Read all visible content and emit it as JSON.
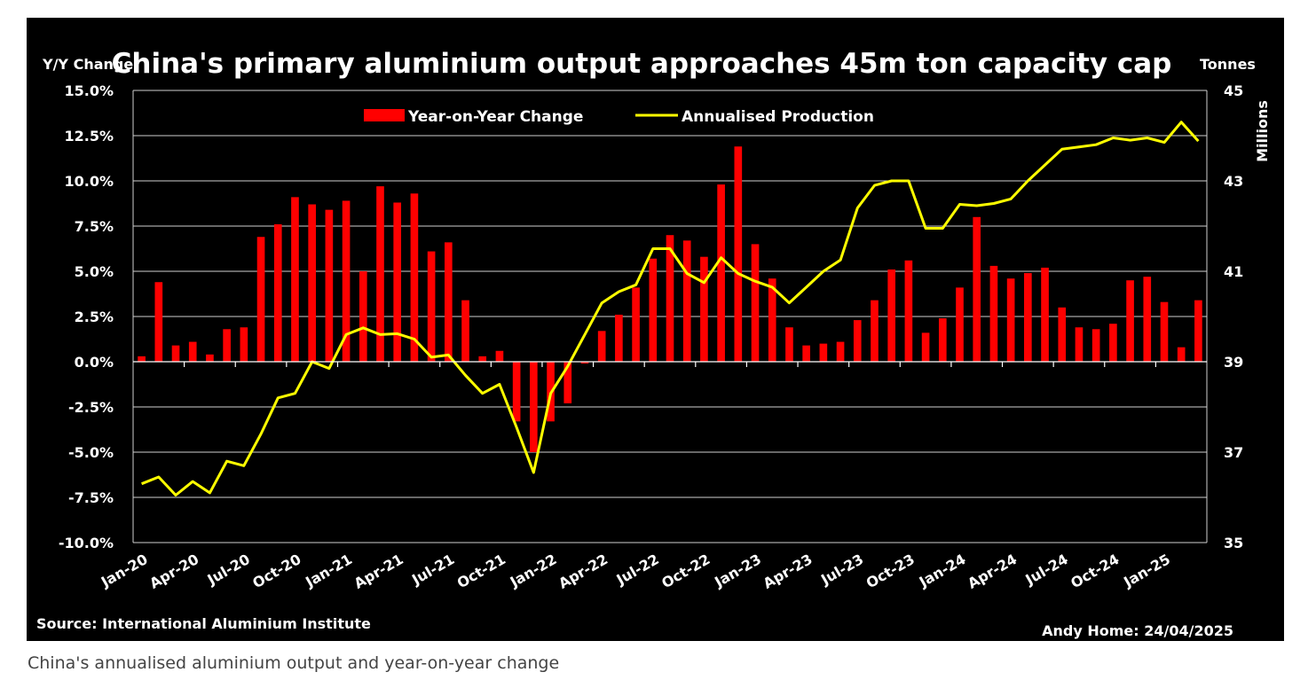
{
  "caption": "China's annualised aluminium output and year-on-year change",
  "chart_data": {
    "type": "bar",
    "title": "China's primary aluminium output approaches 45m ton capacity cap",
    "y_left_label": "Y/Y Change",
    "y_right_label": "Tonnes",
    "y_right_unit": "Millions",
    "source": "Source: International Aluminium Institute",
    "credit": "Andy Home: 24/04/2025",
    "y_left_ticks": [
      "15.0%",
      "12.5%",
      "10.0%",
      "7.5%",
      "5.0%",
      "2.5%",
      "0.0%",
      "-2.5%",
      "-5.0%",
      "-7.5%",
      "-10.0%"
    ],
    "y_right_ticks": [
      "45",
      "43",
      "41",
      "39",
      "37",
      "35"
    ],
    "y_left_range": [
      -10,
      15
    ],
    "y_right_range": [
      35,
      45
    ],
    "x_tick_labels": [
      "Jan-20",
      "Apr-20",
      "Jul-20",
      "Oct-20",
      "Jan-21",
      "Apr-21",
      "Jul-21",
      "Oct-21",
      "Jan-22",
      "Apr-22",
      "Jul-22",
      "Oct-22",
      "Jan-23",
      "Apr-23",
      "Jul-23",
      "Oct-23",
      "Jan-24",
      "Apr-24",
      "Jul-24",
      "Oct-24",
      "Jan-25"
    ],
    "legend_position": "top-center",
    "grid": true,
    "series": [
      {
        "name": "Year-on-Year Change",
        "type": "bar",
        "axis": "left",
        "color": "#ff0000",
        "values": [
          0.3,
          4.4,
          0.9,
          1.1,
          0.4,
          1.8,
          1.9,
          6.9,
          7.6,
          9.1,
          8.7,
          8.4,
          8.9,
          5.0,
          9.7,
          8.8,
          9.3,
          6.1,
          6.6,
          3.4,
          0.3,
          0.6,
          -3.3,
          -5.0,
          -3.3,
          -2.3,
          -0.1,
          1.7,
          2.6,
          4.1,
          5.7,
          7.0,
          6.7,
          5.8,
          9.8,
          11.9,
          6.5,
          4.6,
          1.9,
          0.9,
          1.0,
          1.1,
          2.3,
          3.4,
          5.1,
          5.6,
          1.6,
          2.4,
          4.1,
          8.0,
          5.3,
          4.6,
          4.9,
          5.2,
          3.0,
          1.9,
          1.8,
          2.1,
          4.5,
          4.7,
          3.3,
          0.8,
          3.4
        ]
      },
      {
        "name": "Annualised Production",
        "type": "line",
        "axis": "right",
        "color": "#ffff00",
        "values": [
          36.3,
          36.45,
          36.05,
          36.35,
          36.1,
          36.8,
          36.7,
          37.4,
          38.2,
          38.3,
          39.0,
          38.85,
          39.6,
          39.75,
          39.6,
          39.62,
          39.5,
          39.1,
          39.15,
          38.7,
          38.3,
          38.5,
          37.55,
          36.55,
          38.3,
          38.9,
          39.6,
          40.3,
          40.55,
          40.7,
          41.5,
          41.5,
          40.95,
          40.75,
          41.3,
          40.95,
          40.78,
          40.65,
          40.3,
          40.65,
          41.0,
          41.25,
          42.4,
          42.9,
          43.0,
          43.0,
          41.95,
          41.95,
          42.48,
          42.45,
          42.5,
          42.6,
          43.0,
          43.35,
          43.7,
          43.75,
          43.8,
          43.95,
          43.9,
          43.95,
          43.85,
          44.3,
          43.88
        ]
      }
    ]
  }
}
